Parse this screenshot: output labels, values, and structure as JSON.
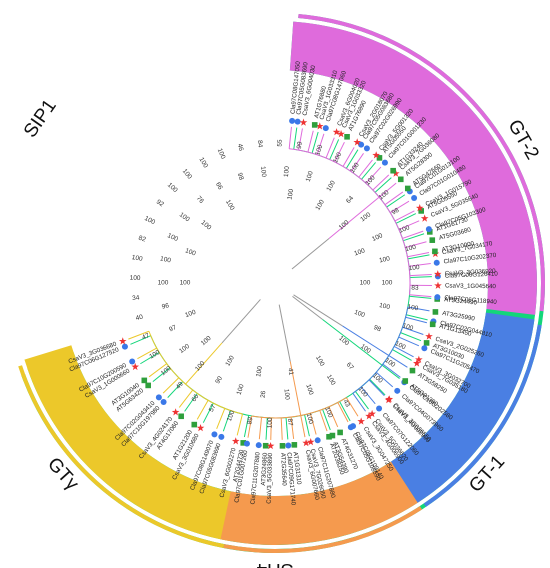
{
  "clade_colors": {
    "SIP1": "#13d67a",
    "GT-2": "#df6bdc",
    "GT-1": "#4a7fe3",
    "SH4": "#f59a4e",
    "GTgamma": "#ecc82a"
  },
  "marker_colors": {
    "circle": "#3a78e8",
    "square": "#2e9f3c",
    "star": "#ee3333"
  },
  "clades": [
    {
      "id": "SIP1",
      "label": "SIP1",
      "leaves": [
        {
          "name": "Cla97C05G083690",
          "marker": "circle"
        },
        {
          "name": "CsaV3_1G033310",
          "marker": "star"
        },
        {
          "name": "CsaV3_1G033320",
          "marker": "star"
        },
        {
          "name": "Cla97C05G083680",
          "marker": "circle"
        },
        {
          "name": "AT5G05550",
          "marker": "square"
        },
        {
          "name": "CsaV3_7G036080",
          "marker": "star"
        },
        {
          "name": "Cla97C01G013100",
          "marker": "circle"
        },
        {
          "name": "AT5G05550",
          "marker": "square"
        },
        {
          "name": "AT1G61730",
          "marker": "square"
        },
        {
          "name": "CsaV3_7G034170",
          "marker": "star"
        },
        {
          "name": "Cla97C06G126410",
          "marker": "circle"
        },
        {
          "name": "AT3G24490",
          "marker": "square"
        },
        {
          "name": "Cla97C02G044810",
          "marker": "circle"
        },
        {
          "name": "AT3G10030",
          "marker": "square"
        },
        {
          "name": "CsaV3_7G035180",
          "marker": "star"
        },
        {
          "name": "Cla97C10G202580",
          "marker": "circle"
        },
        {
          "name": "CsaV3_3G036550",
          "marker": "star"
        },
        {
          "name": "CsaV3_5G036620",
          "marker": "star"
        },
        {
          "name": "Cla97C05G109140",
          "marker": "circle"
        },
        {
          "name": "AT3G54390",
          "marker": "square"
        },
        {
          "name": "CsaV3_7G026050",
          "marker": "star"
        },
        {
          "name": "Cla97C09G171740",
          "marker": "circle"
        },
        {
          "name": "AT3G24860",
          "marker": "square"
        },
        {
          "name": "AT2G44730",
          "marker": "square"
        },
        {
          "name": "Cla97C05G083690",
          "marker": "circle"
        },
        {
          "name": "CsaV3_3G010680",
          "marker": "star"
        },
        {
          "name": "AT4G17060",
          "marker": "square"
        },
        {
          "name": "Cla97C10G197980",
          "marker": "circle"
        },
        {
          "name": "AT5G63420",
          "marker": "square"
        },
        {
          "name": "CsaV3_1G000660",
          "marker": "star"
        },
        {
          "name": "Cla97C06G127520",
          "marker": "circle"
        }
      ]
    },
    {
      "id": "GTgamma",
      "label": "GTγ",
      "leaves": [
        {
          "name": "CsaV3_3G036680",
          "marker": "star"
        },
        {
          "name": "Cla97C10G200590",
          "marker": "circle"
        },
        {
          "name": "AT3G10040",
          "marker": "square"
        },
        {
          "name": "Cla97C02G043410",
          "marker": "circle"
        },
        {
          "name": "CsaV3_4G024170",
          "marker": "star"
        },
        {
          "name": "AT1G21200",
          "marker": "square"
        },
        {
          "name": "Cla97C08G149070",
          "marker": "circle"
        },
        {
          "name": "CsaV3_6G002270",
          "marker": "star"
        }
      ]
    },
    {
      "id": "SH4",
      "label": "SH4",
      "leaves": [
        {
          "name": "Cla97C01G007260",
          "marker": "circle"
        },
        {
          "name": "Cla97C11G207880",
          "marker": "circle"
        },
        {
          "name": "CsaV3_5G033890",
          "marker": "star"
        },
        {
          "name": "AT2G35640",
          "marker": "square"
        },
        {
          "name": "AT1G31310",
          "marker": "square"
        },
        {
          "name": "CsaV3_6G007660",
          "marker": "star"
        },
        {
          "name": "Cla97C11G207880",
          "marker": "circle"
        },
        {
          "name": "AT2G38250",
          "marker": "square"
        },
        {
          "name": "AT4G31270",
          "marker": "square"
        },
        {
          "name": "Cla97C05G108590",
          "marker": "circle"
        },
        {
          "name": "CsaV3_3G047250",
          "marker": "star"
        }
      ]
    },
    {
      "id": "GT-1",
      "label": "GT-1",
      "leaves": [
        {
          "name": "CsaV3_4G006900",
          "marker": "star"
        },
        {
          "name": "Cla97C07G122060",
          "marker": "circle"
        },
        {
          "name": "CsaV3_4G002900",
          "marker": "star"
        },
        {
          "name": "Cla97C04G073960",
          "marker": "circle"
        },
        {
          "name": "AT5G01380",
          "marker": "square"
        },
        {
          "name": "AT3G58250",
          "marker": "square"
        },
        {
          "name": "CsaV3_3G032700",
          "marker": "star"
        },
        {
          "name": "Cla97C11G205470",
          "marker": "circle"
        },
        {
          "name": "CsaV3_2G025260",
          "marker": "star"
        },
        {
          "name": "AT1G13450",
          "marker": "square"
        },
        {
          "name": "AT3G25990",
          "marker": "square"
        }
      ]
    },
    {
      "id": "GT-2",
      "label": "GT-2",
      "leaves": [
        {
          "name": "Cla97C06G118940",
          "marker": "circle"
        },
        {
          "name": "CsaV3_1G045640",
          "marker": "star"
        },
        {
          "name": "CsaV3_3G036920",
          "marker": "star"
        },
        {
          "name": "Cla97C10G202370",
          "marker": "circle"
        },
        {
          "name": "AT3G10000",
          "marker": "square"
        },
        {
          "name": "AT5G03680",
          "marker": "square"
        },
        {
          "name": "Cla97C05G103300",
          "marker": "circle"
        },
        {
          "name": "CsaV3_5G035640",
          "marker": "star"
        },
        {
          "name": "CsaV3_1G015790",
          "marker": "star"
        },
        {
          "name": "Cla97C01G010480",
          "marker": "circle"
        },
        {
          "name": "AT5G47660",
          "marker": "square"
        },
        {
          "name": "AT5G28300",
          "marker": "square"
        },
        {
          "name": "AT1G33240",
          "marker": "square"
        },
        {
          "name": "Cla97C01G001230",
          "marker": "circle"
        },
        {
          "name": "CsaV3_5G001320",
          "marker": "star"
        },
        {
          "name": "Cla97C02G026990",
          "marker": "circle"
        },
        {
          "name": "CsaV3_2G018070",
          "marker": "star"
        },
        {
          "name": "AT1G76890",
          "marker": "square"
        },
        {
          "name": "CsaV3_6G004020",
          "marker": "star"
        },
        {
          "name": "Cla97C08G147060",
          "marker": "circle"
        },
        {
          "name": "AT1G76880",
          "marker": "square"
        },
        {
          "name": "CsaV3_6G004030",
          "marker": "star"
        },
        {
          "name": "Cla97C08G147050",
          "marker": "circle"
        }
      ]
    }
  ],
  "bootstrap_values": [
    "55",
    "99",
    "100",
    "100",
    "100",
    "100",
    "100",
    "98",
    "100",
    "100",
    "100",
    "83",
    "100",
    "100",
    "100",
    "100",
    "100",
    "100",
    "43",
    "100",
    "100",
    "87",
    "100",
    "89",
    "100",
    "57",
    "66",
    "49",
    "100",
    "100",
    "47",
    "40",
    "34",
    "100",
    "100",
    "82",
    "100",
    "92",
    "100",
    "100",
    "100",
    "100",
    "46",
    "84",
    "100",
    "100",
    "100",
    "64",
    "100",
    "100",
    "100",
    "100",
    "100",
    "98",
    "100",
    "67",
    "100",
    "100",
    "100",
    "26",
    "100",
    "90",
    "100",
    "100",
    "97",
    "96",
    "100",
    "100",
    "100",
    "100",
    "76",
    "66",
    "98",
    "100",
    "100",
    "100",
    "100",
    "100",
    "100",
    "100",
    "100",
    "100",
    "41",
    "100",
    "100",
    "100",
    "100",
    "100",
    "100",
    "100",
    "100"
  ]
}
